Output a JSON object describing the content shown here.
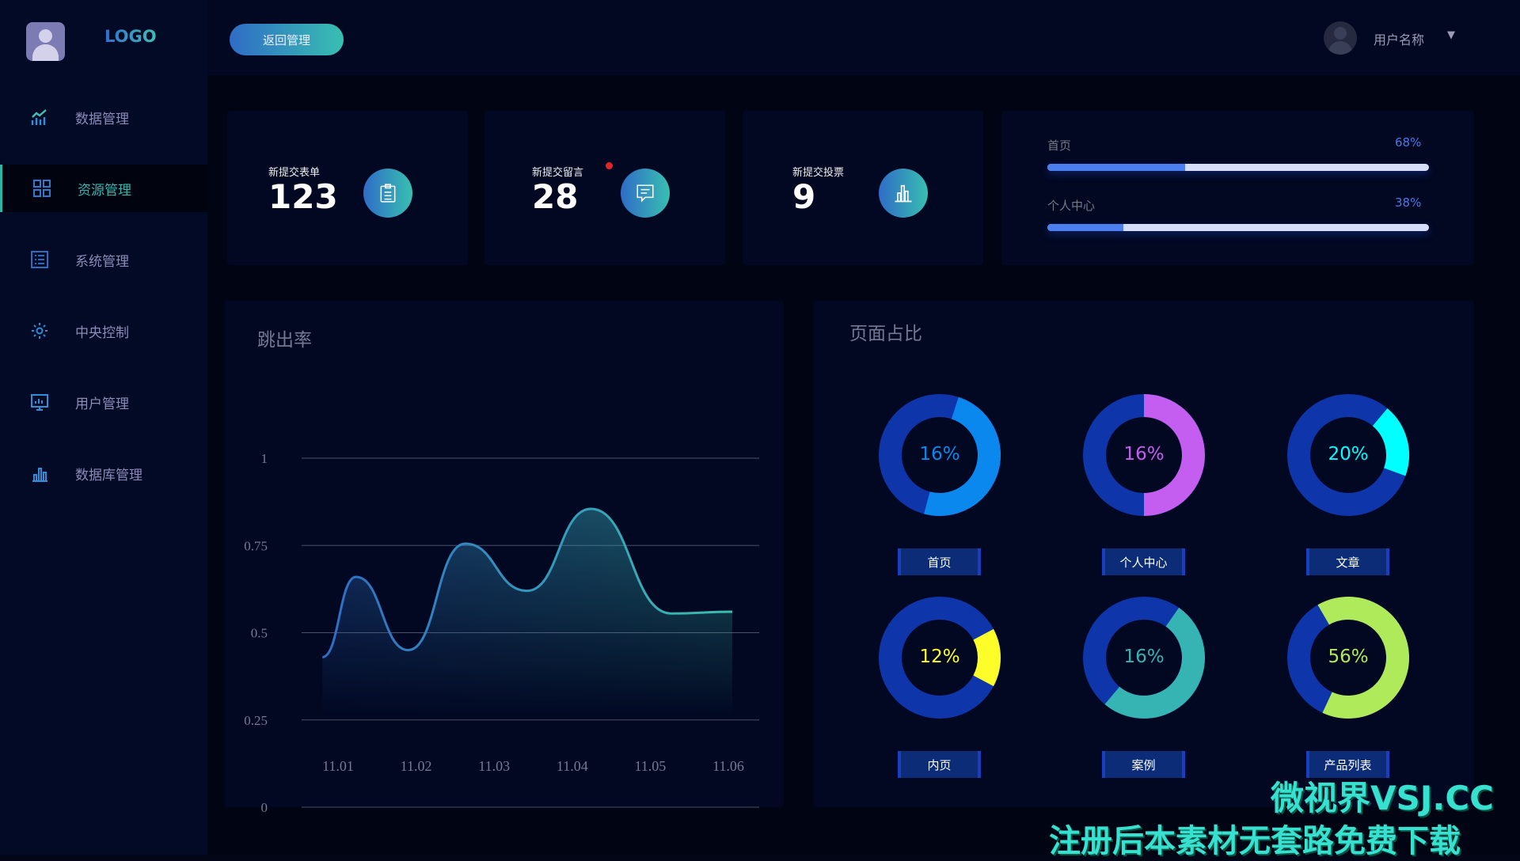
{
  "header": {
    "logo": "LOGO",
    "back_button": "返回管理",
    "username": "用户名称",
    "caret": "▼"
  },
  "sidebar": {
    "items": [
      {
        "label": "数据管理",
        "icon": "trend-chart-icon"
      },
      {
        "label": "资源管理",
        "icon": "grid-icon",
        "active": true
      },
      {
        "label": "系统管理",
        "icon": "list-icon"
      },
      {
        "label": "中央控制",
        "icon": "gear-icon"
      },
      {
        "label": "用户管理",
        "icon": "monitor-icon"
      },
      {
        "label": "数据库管理",
        "icon": "bar-chart-icon"
      }
    ]
  },
  "stats": [
    {
      "label": "新提交表单",
      "value": "123",
      "icon": "clipboard-icon"
    },
    {
      "label": "新提交留言",
      "value": "28",
      "icon": "message-icon",
      "badge": true
    },
    {
      "label": "新提交投票",
      "value": "9",
      "icon": "bar-chart-icon"
    }
  ],
  "progress": [
    {
      "label": "首页",
      "value": "68%",
      "fill": 0.36
    },
    {
      "label": "个人中心",
      "value": "38%",
      "fill": 0.2
    }
  ],
  "chart_data": [
    {
      "type": "area",
      "title": "跳出率",
      "categories": [
        "11.01",
        "11.02",
        "11.03",
        "11.04",
        "11.05",
        "11.06"
      ],
      "yticks": [
        "0",
        "0.25",
        "0.5",
        "0.75",
        "1"
      ],
      "ylim": [
        0,
        1
      ],
      "grid": true,
      "points": [
        [
          -0.2,
          0.43
        ],
        [
          0.23,
          0.66
        ],
        [
          0.9,
          0.45
        ],
        [
          1.63,
          0.755
        ],
        [
          2.42,
          0.62
        ],
        [
          3.24,
          0.855
        ],
        [
          4.27,
          0.555
        ],
        [
          5.05,
          0.56
        ]
      ],
      "colors": [
        "#2f6cc6",
        "#38bfb1"
      ]
    },
    {
      "type": "pie",
      "title": "页面占比",
      "items": [
        {
          "label": "首页",
          "value": "16%",
          "color": "#0a88ee"
        },
        {
          "label": "个人中心",
          "value": "16%",
          "color": "#c45ef0"
        },
        {
          "label": "文章",
          "value": "20%",
          "color": "#00ffff"
        },
        {
          "label": "内页",
          "value": "12%",
          "color": "#fdfd2a"
        },
        {
          "label": "案例",
          "value": "16%",
          "color": "#36b3b3"
        },
        {
          "label": "产品列表",
          "value": "56%",
          "color": "#aeea5a"
        }
      ],
      "base_color": "#0f35ab"
    }
  ],
  "watermark": {
    "line1": "微视界VSJ.CC",
    "line2": "注册后本素材无套路免费下载"
  }
}
